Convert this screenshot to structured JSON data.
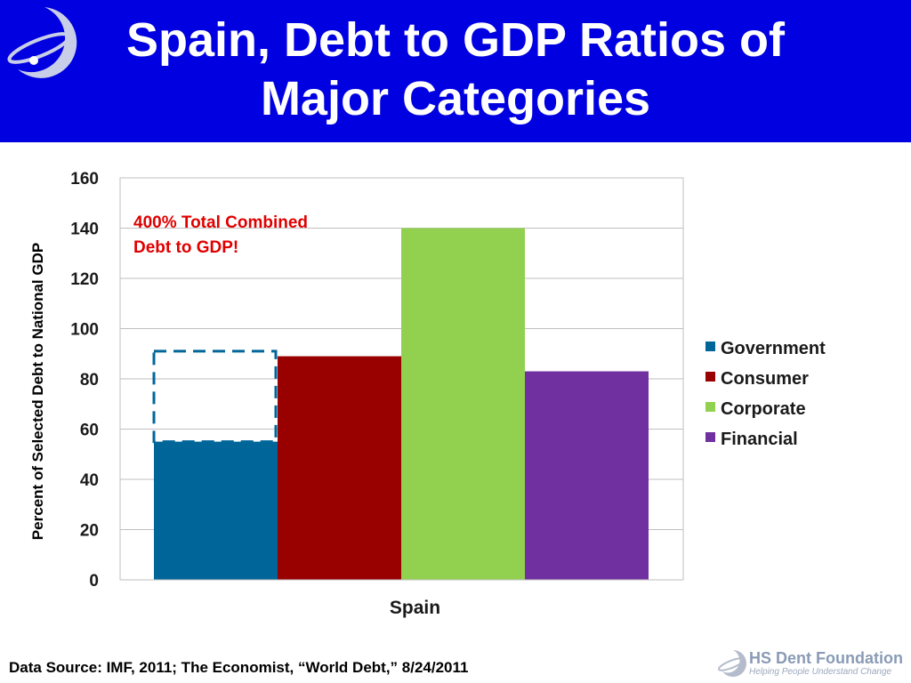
{
  "slide": {
    "title_line1": "Spain, Debt to GDP Ratios of",
    "title_line2": "Major Categories",
    "source": "Data Source: IMF, 2011; The Economist, “World Debt,” 8/24/2011",
    "logo_name": "HS Dent Foundation",
    "logo_tagline": "Helping People Understand Change",
    "banner_color": "#0000e0"
  },
  "chart_data": {
    "type": "bar",
    "categories": [
      "Spain"
    ],
    "series": [
      {
        "name": "Government",
        "values": [
          55
        ],
        "color": "#006699"
      },
      {
        "name": "Consumer",
        "values": [
          89
        ],
        "color": "#990000"
      },
      {
        "name": "Corporate",
        "values": [
          140
        ],
        "color": "#92d050"
      },
      {
        "name": "Financial",
        "values": [
          83
        ],
        "color": "#7030a0"
      }
    ],
    "ylabel": "Percent of Selected Debt to National GDP",
    "ylim": [
      0,
      160
    ],
    "yticks": [
      0,
      20,
      40,
      60,
      80,
      100,
      120,
      140,
      160
    ],
    "grid": true,
    "legend": "right",
    "annotation": {
      "line1": "400% Total Combined",
      "line2": "Debt to GDP!",
      "color": "#e00000"
    },
    "dashed_outline": {
      "series": "Government",
      "from": 55,
      "to": 91
    }
  }
}
